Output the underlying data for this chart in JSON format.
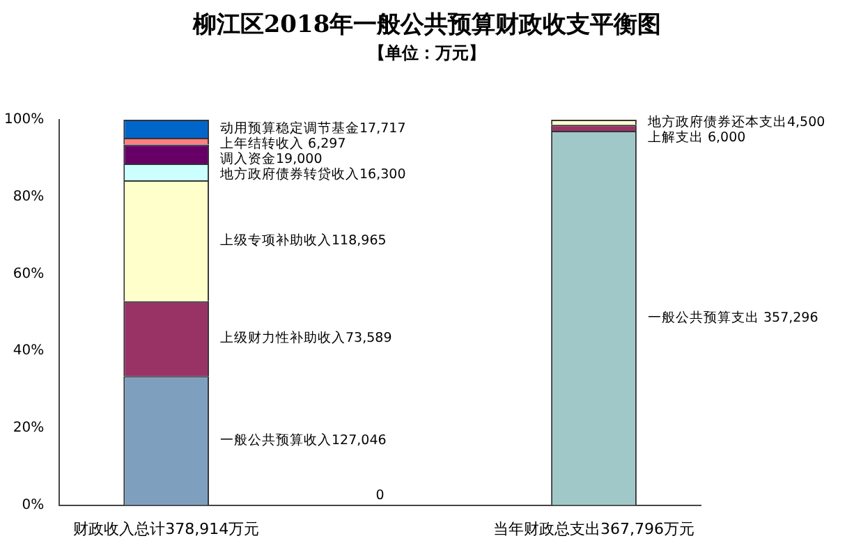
{
  "chart_data": {
    "type": "bar",
    "stacked": true,
    "title": "柳江区2018年一般公共预算财政收支平衡图",
    "subtitle": "【单位：万元】",
    "categories": [
      "财政收入总计378,914万元",
      null,
      "当年财政总支出367,796万元"
    ],
    "ylim": [
      0,
      100
    ],
    "yticks": [
      {
        "value": 0,
        "label": "0%"
      },
      {
        "value": 20,
        "label": "20%"
      },
      {
        "value": 40,
        "label": "40%"
      },
      {
        "value": 60,
        "label": "60%"
      },
      {
        "value": 80,
        "label": "80%"
      },
      {
        "value": 100,
        "label": "100%"
      }
    ],
    "grid": false,
    "legend": false,
    "annotations": [
      "0"
    ],
    "series": [
      {
        "name": "一般公共预算收入127,046",
        "color": "#7f9fbf",
        "values": [
          33.5,
          null,
          null
        ]
      },
      {
        "name": "上级财力性补助收入73,589",
        "color": "#993366",
        "values": [
          19.4,
          null,
          null
        ]
      },
      {
        "name": "上级专项补助收入118,965",
        "color": "#ffffcc",
        "values": [
          31.4,
          null,
          null
        ]
      },
      {
        "name": "地方政府债券转贷收入16,300",
        "color": "#ccffff",
        "values": [
          4.3,
          null,
          null
        ]
      },
      {
        "name": "调入资金19,000",
        "color": "#660066",
        "values": [
          5.0,
          null,
          null
        ]
      },
      {
        "name": "上年结转收入 6,297",
        "color": "#ff8080",
        "values": [
          1.7,
          null,
          null
        ]
      },
      {
        "name": "动用预算稳定调节基金17,717",
        "color": "#0066cc",
        "values": [
          4.7,
          null,
          null
        ]
      },
      {
        "name": "一般公共预算支出 357,296",
        "color": "#a0c8c8",
        "values": [
          null,
          null,
          97.1
        ]
      },
      {
        "name": "上解支出 6,000",
        "color": "#993366",
        "values": [
          null,
          null,
          1.6
        ]
      },
      {
        "name": "地方政府债券还本支出4,500",
        "color": "#ffffcc",
        "values": [
          null,
          null,
          1.3
        ]
      }
    ]
  }
}
